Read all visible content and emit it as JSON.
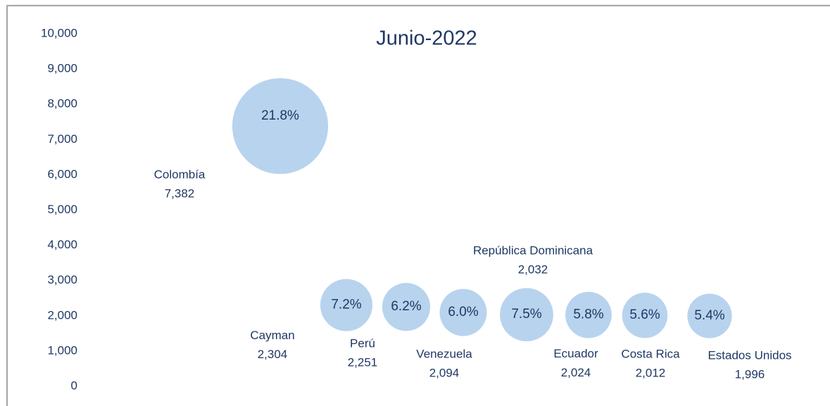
{
  "chart_data": {
    "type": "bubble",
    "title": "Junio-2022",
    "categories": [
      "Colombía",
      "Cayman",
      "Perú",
      "Venezuela",
      "República Dominicana",
      "Ecuador",
      "Costa Rica",
      "Estados Unidos"
    ],
    "values": [
      7382,
      2304,
      2251,
      2094,
      2032,
      2024,
      2012,
      1996
    ],
    "value_labels": [
      "7,382",
      "2,304",
      "2,251",
      "2,094",
      "2,032",
      "2,024",
      "2,012",
      "1,996"
    ],
    "sizes": [
      21.8,
      7.2,
      6.2,
      6.0,
      7.5,
      5.8,
      5.6,
      5.4
    ],
    "size_labels": [
      "21.8%",
      "7.2%",
      "6.2%",
      "6.0%",
      "7.5%",
      "5.8%",
      "5.6%",
      "5.4%"
    ],
    "color": "#b8d3ee",
    "ylim": [
      0,
      10000
    ],
    "yticks": [
      {
        "value": 0,
        "label": "0"
      },
      {
        "value": 1000,
        "label": "1,000"
      },
      {
        "value": 2000,
        "label": "2,000"
      },
      {
        "value": 3000,
        "label": "3,000"
      },
      {
        "value": 4000,
        "label": "4,000"
      },
      {
        "value": 5000,
        "label": "5,000"
      },
      {
        "value": 6000,
        "label": "6,000"
      },
      {
        "value": 7000,
        "label": "7,000"
      },
      {
        "value": 8000,
        "label": "8,000"
      },
      {
        "value": 9000,
        "label": "9,000"
      },
      {
        "value": 10000,
        "label": "10,000"
      }
    ]
  }
}
